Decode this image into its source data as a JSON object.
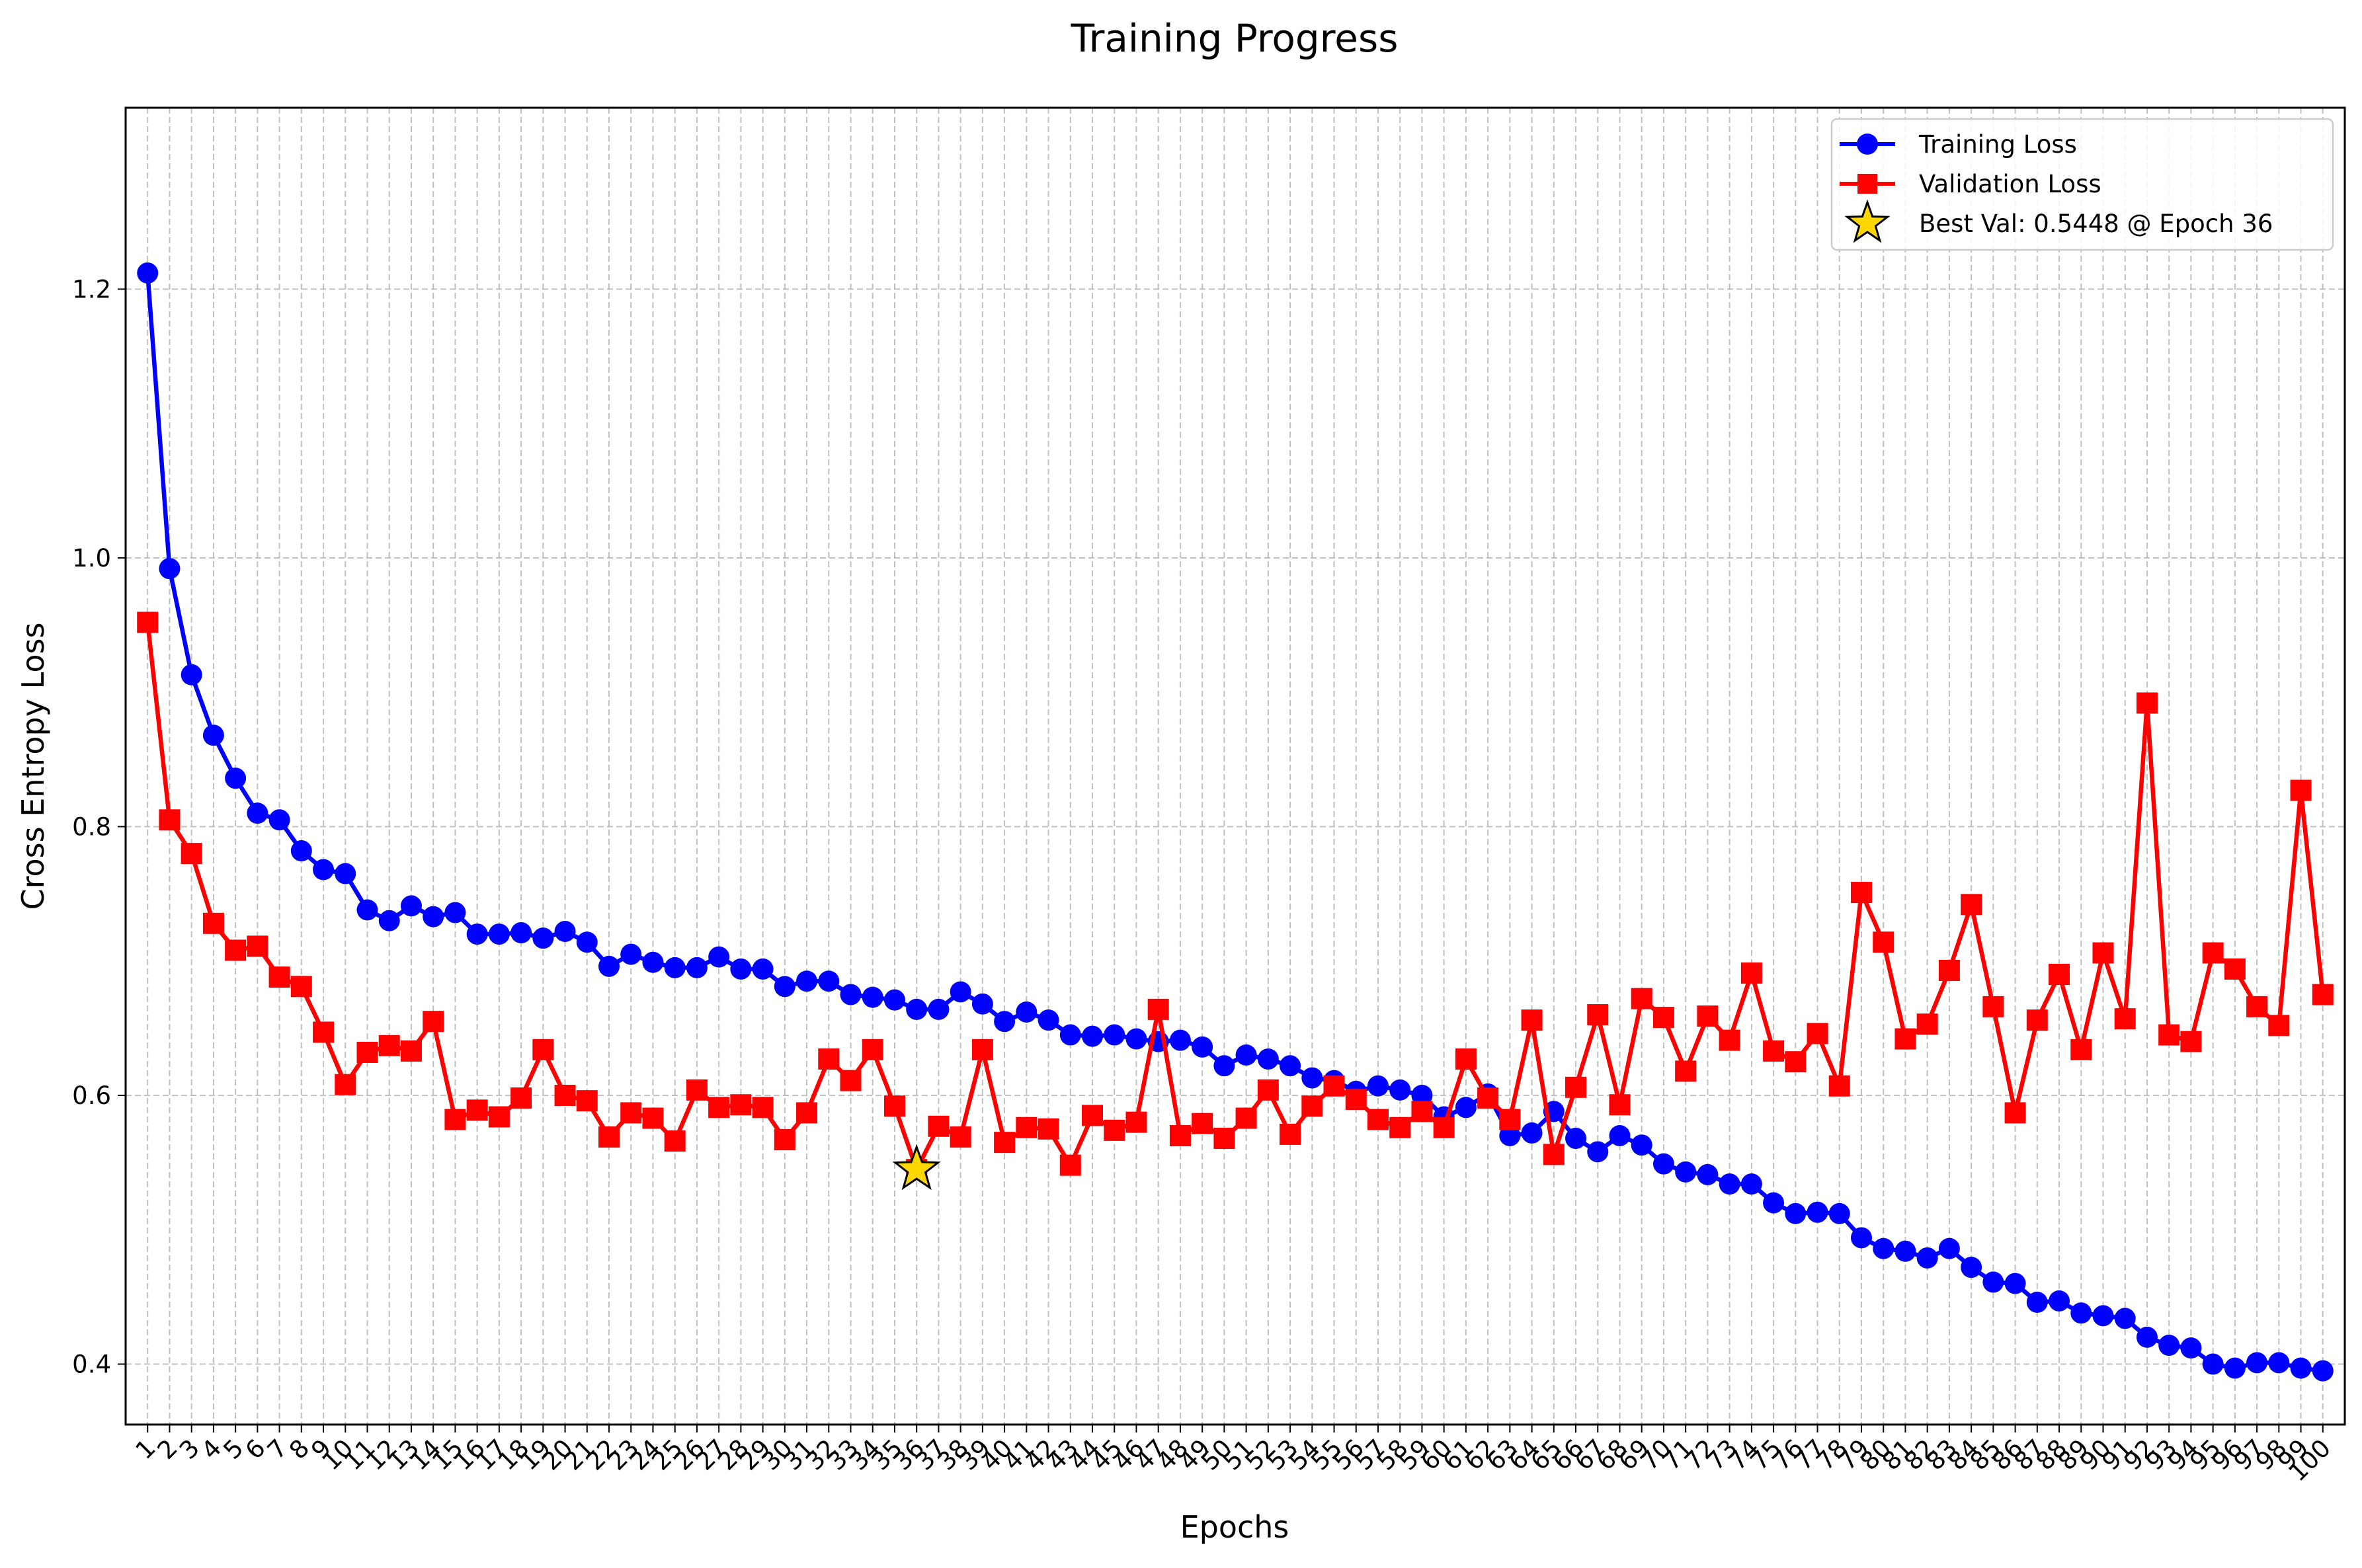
{
  "chart_data": {
    "type": "line",
    "title": "Training Progress",
    "xlabel": "Epochs",
    "ylabel": "Cross Entropy Loss",
    "xlim": [
      0,
      101
    ],
    "ylim": [
      0.355,
      1.335
    ],
    "grid": true,
    "legend_position": "top-right",
    "x": [
      1,
      2,
      3,
      4,
      5,
      6,
      7,
      8,
      9,
      10,
      11,
      12,
      13,
      14,
      15,
      16,
      17,
      18,
      19,
      20,
      21,
      22,
      23,
      24,
      25,
      26,
      27,
      28,
      29,
      30,
      31,
      32,
      33,
      34,
      35,
      36,
      37,
      38,
      39,
      40,
      41,
      42,
      43,
      44,
      45,
      46,
      47,
      48,
      49,
      50,
      51,
      52,
      53,
      54,
      55,
      56,
      57,
      58,
      59,
      60,
      61,
      62,
      63,
      64,
      65,
      66,
      67,
      68,
      69,
      70,
      71,
      72,
      73,
      74,
      75,
      76,
      77,
      78,
      79,
      80,
      81,
      82,
      83,
      84,
      85,
      86,
      87,
      88,
      89,
      90,
      91,
      92,
      93,
      94,
      95,
      96,
      97,
      98,
      99,
      100
    ],
    "x_tick_labels": [
      "1",
      "2",
      "3",
      "4",
      "5",
      "6",
      "7",
      "8",
      "9",
      "10",
      "11",
      "12",
      "13",
      "14",
      "15",
      "16",
      "17",
      "18",
      "19",
      "20",
      "21",
      "22",
      "23",
      "24",
      "25",
      "26",
      "27",
      "28",
      "29",
      "30",
      "31",
      "32",
      "33",
      "34",
      "35",
      "36",
      "37",
      "38",
      "39",
      "40",
      "41",
      "42",
      "43",
      "44",
      "45",
      "46",
      "47",
      "48",
      "49",
      "50",
      "51",
      "52",
      "53",
      "54",
      "55",
      "56",
      "57",
      "58",
      "59",
      "60",
      "61",
      "62",
      "63",
      "64",
      "65",
      "66",
      "67",
      "68",
      "69",
      "70",
      "71",
      "72",
      "73",
      "74",
      "75",
      "76",
      "77",
      "78",
      "79",
      "80",
      "81",
      "82",
      "83",
      "84",
      "85",
      "86",
      "87",
      "88",
      "89",
      "90",
      "91",
      "92",
      "93",
      "94",
      "95",
      "96",
      "97",
      "98",
      "99",
      "100"
    ],
    "y_ticks": [
      {
        "value": 0.4,
        "label": "0.4"
      },
      {
        "value": 0.6,
        "label": "0.6"
      },
      {
        "value": 0.8,
        "label": "0.8"
      },
      {
        "value": 1.0,
        "label": "1.0"
      },
      {
        "value": 1.2,
        "label": "1.2"
      }
    ],
    "series": [
      {
        "name": "Training Loss",
        "color": "#0000ff",
        "marker": "circle",
        "values": [
          1.212,
          0.992,
          0.913,
          0.868,
          0.836,
          0.81,
          0.805,
          0.782,
          0.768,
          0.765,
          0.738,
          0.73,
          0.741,
          0.733,
          0.736,
          0.72,
          0.72,
          0.721,
          0.717,
          0.722,
          0.714,
          0.696,
          0.705,
          0.699,
          0.695,
          0.695,
          0.703,
          0.694,
          0.694,
          0.681,
          0.685,
          0.685,
          0.675,
          0.673,
          0.671,
          0.664,
          0.664,
          0.677,
          0.668,
          0.655,
          0.662,
          0.656,
          0.645,
          0.644,
          0.645,
          0.642,
          0.64,
          0.641,
          0.636,
          0.622,
          0.63,
          0.627,
          0.622,
          0.613,
          0.611,
          0.603,
          0.607,
          0.604,
          0.6,
          0.584,
          0.591,
          0.601,
          0.57,
          0.572,
          0.588,
          0.568,
          0.558,
          0.57,
          0.563,
          0.549,
          0.543,
          0.541,
          0.534,
          0.534,
          0.52,
          0.512,
          0.513,
          0.512,
          0.494,
          0.486,
          0.484,
          0.479,
          0.486,
          0.472,
          0.461,
          0.46,
          0.446,
          0.447,
          0.438,
          0.436,
          0.434,
          0.42,
          0.414,
          0.412,
          0.4,
          0.397,
          0.401,
          0.401,
          0.397,
          0.395
        ]
      },
      {
        "name": "Validation Loss",
        "color": "#ff0000",
        "marker": "square",
        "values": [
          0.952,
          0.805,
          0.78,
          0.728,
          0.708,
          0.711,
          0.688,
          0.681,
          0.647,
          0.608,
          0.632,
          0.637,
          0.633,
          0.655,
          0.582,
          0.589,
          0.584,
          0.598,
          0.634,
          0.6,
          0.596,
          0.569,
          0.587,
          0.583,
          0.566,
          0.604,
          0.591,
          0.593,
          0.591,
          0.567,
          0.587,
          0.627,
          0.611,
          0.634,
          0.592,
          0.5448,
          0.577,
          0.569,
          0.634,
          0.565,
          0.576,
          0.575,
          0.548,
          0.585,
          0.574,
          0.58,
          0.664,
          0.57,
          0.579,
          0.568,
          0.583,
          0.604,
          0.571,
          0.592,
          0.607,
          0.597,
          0.582,
          0.576,
          0.588,
          0.576,
          0.627,
          0.598,
          0.582,
          0.656,
          0.556,
          0.606,
          0.66,
          0.593,
          0.672,
          0.658,
          0.618,
          0.659,
          0.641,
          0.691,
          0.633,
          0.625,
          0.646,
          0.607,
          0.751,
          0.714,
          0.642,
          0.653,
          0.693,
          0.742,
          0.666,
          0.587,
          0.656,
          0.69,
          0.634,
          0.706,
          0.657,
          0.892,
          0.645,
          0.64,
          0.706,
          0.694,
          0.666,
          0.652,
          0.827,
          0.675
        ]
      }
    ],
    "best_marker": {
      "x": 36,
      "y": 0.5448,
      "color": "#ffd700",
      "label": "Best Val: 0.5448 @ Epoch 36"
    }
  }
}
